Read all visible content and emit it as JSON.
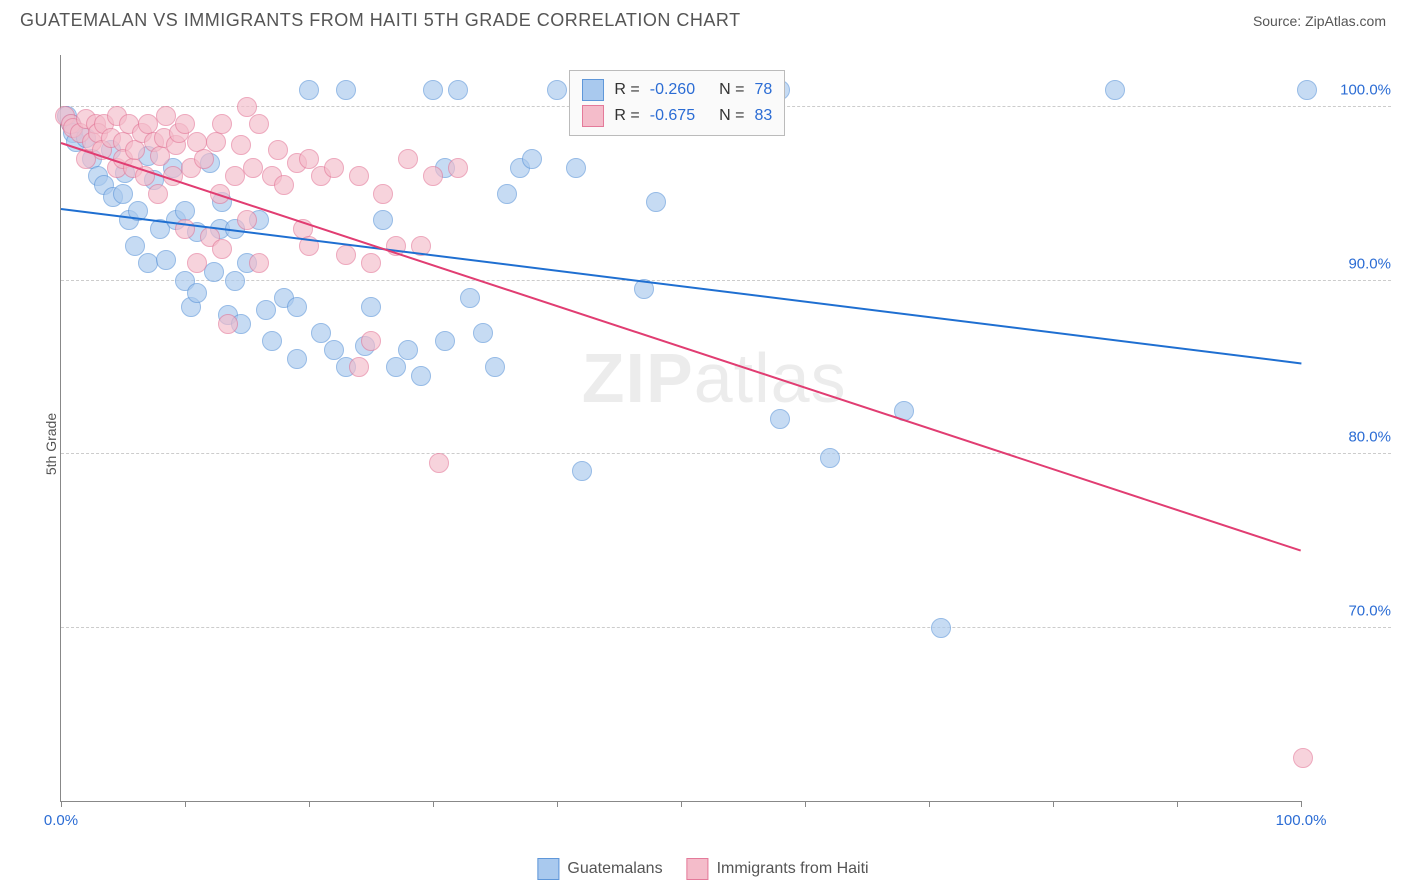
{
  "title": "GUATEMALAN VS IMMIGRANTS FROM HAITI 5TH GRADE CORRELATION CHART",
  "source": "Source: ZipAtlas.com",
  "ylabel": "5th Grade",
  "watermark": {
    "zip": "ZIP",
    "atlas": "atlas"
  },
  "chart": {
    "type": "scatter",
    "xlim": [
      0,
      100
    ],
    "ylim": [
      60,
      103
    ],
    "xticks": [
      0,
      10,
      20,
      30,
      40,
      50,
      60,
      70,
      80,
      90,
      100
    ],
    "xtick_labels": {
      "0": "0.0%",
      "100": "100.0%"
    },
    "yticks": [
      70,
      80,
      90,
      100
    ],
    "ytick_labels": [
      "70.0%",
      "80.0%",
      "90.0%",
      "100.0%"
    ],
    "background_color": "#ffffff",
    "grid_color": "#cccccc",
    "axis_color": "#888888",
    "tick_label_color": "#2b6cd4",
    "marker_radius": 9,
    "marker_opacity": 0.65,
    "series": [
      {
        "name": "Guatemalans",
        "fill": "#a9c9ee",
        "stroke": "#5f97d9",
        "line_color": "#1f6fd1",
        "R": "-0.260",
        "N": "78",
        "trend": {
          "x1": 0,
          "y1": 94.2,
          "x2": 100,
          "y2": 85.3
        },
        "points": [
          [
            0.5,
            99.5
          ],
          [
            0.8,
            99.0
          ],
          [
            1.0,
            98.5
          ],
          [
            1.2,
            98.0
          ],
          [
            2.0,
            98.2
          ],
          [
            2.5,
            97.0
          ],
          [
            3.0,
            96.0
          ],
          [
            3.5,
            95.5
          ],
          [
            4.0,
            97.5
          ],
          [
            4.2,
            94.8
          ],
          [
            5.0,
            95.0
          ],
          [
            5.2,
            96.2
          ],
          [
            5.5,
            93.5
          ],
          [
            6.0,
            92.0
          ],
          [
            6.2,
            94.0
          ],
          [
            7.0,
            97.2
          ],
          [
            7.0,
            91.0
          ],
          [
            7.5,
            95.8
          ],
          [
            8.0,
            93.0
          ],
          [
            8.5,
            91.2
          ],
          [
            9.0,
            96.5
          ],
          [
            9.3,
            93.5
          ],
          [
            10.0,
            94.0
          ],
          [
            10.0,
            90.0
          ],
          [
            10.5,
            88.5
          ],
          [
            11.0,
            92.8
          ],
          [
            11.0,
            89.3
          ],
          [
            12.0,
            96.8
          ],
          [
            12.3,
            90.5
          ],
          [
            12.8,
            93.0
          ],
          [
            13.0,
            94.5
          ],
          [
            13.5,
            88.0
          ],
          [
            14.0,
            90.0
          ],
          [
            14.0,
            93.0
          ],
          [
            14.5,
            87.5
          ],
          [
            15.0,
            91.0
          ],
          [
            16.0,
            93.5
          ],
          [
            16.5,
            88.3
          ],
          [
            17.0,
            86.5
          ],
          [
            18.0,
            89.0
          ],
          [
            19.0,
            85.5
          ],
          [
            19.0,
            88.5
          ],
          [
            20.0,
            101.0
          ],
          [
            21.0,
            87.0
          ],
          [
            22.0,
            86.0
          ],
          [
            23.0,
            101.0
          ],
          [
            23.0,
            85.0
          ],
          [
            24.5,
            86.2
          ],
          [
            25.0,
            88.5
          ],
          [
            26.0,
            93.5
          ],
          [
            27.0,
            85.0
          ],
          [
            28.0,
            86.0
          ],
          [
            29.0,
            84.5
          ],
          [
            30.0,
            101.0
          ],
          [
            31.0,
            86.5
          ],
          [
            31.0,
            96.5
          ],
          [
            32.0,
            101.0
          ],
          [
            33.0,
            89.0
          ],
          [
            34.0,
            87.0
          ],
          [
            35.0,
            85.0
          ],
          [
            36.0,
            95.0
          ],
          [
            37.0,
            96.5
          ],
          [
            38.0,
            97.0
          ],
          [
            40.0,
            101.0
          ],
          [
            41.5,
            96.5
          ],
          [
            42.0,
            79.0
          ],
          [
            47.0,
            89.5
          ],
          [
            48.0,
            94.5
          ],
          [
            58.0,
            82.0
          ],
          [
            58.0,
            101.0
          ],
          [
            62.0,
            79.8
          ],
          [
            68.0,
            82.5
          ],
          [
            71.0,
            70.0
          ],
          [
            85.0,
            101.0
          ],
          [
            100.5,
            101.0
          ]
        ]
      },
      {
        "name": "Immigrants from Haiti",
        "fill": "#f4bcca",
        "stroke": "#e47a9a",
        "line_color": "#e13d72",
        "R": "-0.675",
        "N": "83",
        "trend": {
          "x1": 0,
          "y1": 98.0,
          "x2": 100,
          "y2": 74.5
        },
        "points": [
          [
            0.3,
            99.5
          ],
          [
            0.8,
            99.0
          ],
          [
            1.0,
            98.8
          ],
          [
            1.5,
            98.5
          ],
          [
            2.0,
            99.3
          ],
          [
            2.0,
            97.0
          ],
          [
            2.5,
            98.0
          ],
          [
            2.8,
            99.0
          ],
          [
            3.0,
            98.5
          ],
          [
            3.3,
            97.5
          ],
          [
            3.5,
            99.0
          ],
          [
            4.0,
            98.2
          ],
          [
            4.5,
            99.5
          ],
          [
            4.5,
            96.5
          ],
          [
            5.0,
            98.0
          ],
          [
            5.0,
            97.0
          ],
          [
            5.5,
            99.0
          ],
          [
            5.8,
            96.5
          ],
          [
            6.0,
            97.5
          ],
          [
            6.5,
            98.5
          ],
          [
            6.8,
            96.0
          ],
          [
            7.0,
            99.0
          ],
          [
            7.5,
            98.0
          ],
          [
            7.8,
            95.0
          ],
          [
            8.0,
            97.2
          ],
          [
            8.3,
            98.2
          ],
          [
            8.5,
            99.5
          ],
          [
            9.0,
            96.0
          ],
          [
            9.3,
            97.8
          ],
          [
            9.5,
            98.5
          ],
          [
            10.0,
            99.0
          ],
          [
            10.0,
            93.0
          ],
          [
            10.5,
            96.5
          ],
          [
            11.0,
            98.0
          ],
          [
            11.0,
            91.0
          ],
          [
            11.5,
            97.0
          ],
          [
            12.0,
            92.5
          ],
          [
            12.5,
            98.0
          ],
          [
            12.8,
            95.0
          ],
          [
            13.0,
            99.0
          ],
          [
            13.0,
            91.8
          ],
          [
            13.5,
            87.5
          ],
          [
            14.0,
            96.0
          ],
          [
            14.5,
            97.8
          ],
          [
            15.0,
            100.0
          ],
          [
            15.0,
            93.5
          ],
          [
            15.5,
            96.5
          ],
          [
            16.0,
            99.0
          ],
          [
            16.0,
            91.0
          ],
          [
            17.0,
            96.0
          ],
          [
            17.5,
            97.5
          ],
          [
            18.0,
            95.5
          ],
          [
            19.0,
            96.8
          ],
          [
            19.5,
            93.0
          ],
          [
            20.0,
            97.0
          ],
          [
            20.0,
            92.0
          ],
          [
            21.0,
            96.0
          ],
          [
            22.0,
            96.5
          ],
          [
            23.0,
            91.5
          ],
          [
            24.0,
            96.0
          ],
          [
            24.0,
            85.0
          ],
          [
            25.0,
            91.0
          ],
          [
            25.0,
            86.5
          ],
          [
            26.0,
            95.0
          ],
          [
            27.0,
            92.0
          ],
          [
            28.0,
            97.0
          ],
          [
            29.0,
            92.0
          ],
          [
            30.0,
            96.0
          ],
          [
            30.5,
            79.5
          ],
          [
            32.0,
            96.5
          ],
          [
            100.2,
            62.5
          ]
        ]
      }
    ],
    "stats_box": {
      "left_pct": 41,
      "top_pct": 2
    },
    "legend": [
      {
        "label": "Guatemalans",
        "fill": "#a9c9ee",
        "stroke": "#5f97d9"
      },
      {
        "label": "Immigrants from Haiti",
        "fill": "#f4bcca",
        "stroke": "#e47a9a"
      }
    ]
  }
}
